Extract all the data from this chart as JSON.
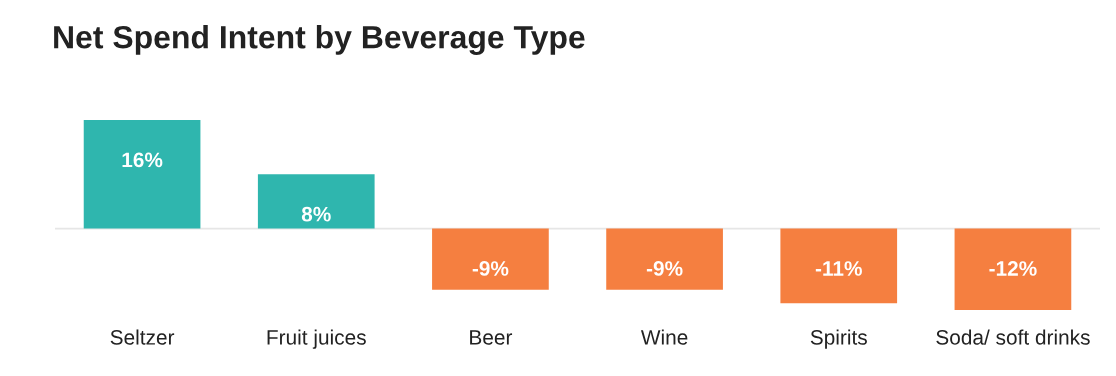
{
  "chart_data": {
    "type": "bar",
    "title": "Net Spend Intent by Beverage Type",
    "categories": [
      "Seltzer",
      "Fruit juices",
      "Beer",
      "Wine",
      "Spirits",
      "Soda/ soft drinks"
    ],
    "values": [
      16,
      8,
      -9,
      -9,
      -11,
      -12
    ],
    "colors": [
      "#2fb6ae",
      "#2fb6ae",
      "#f57f40",
      "#f57f40",
      "#f57f40",
      "#f57f40"
    ],
    "value_labels": [
      "16%",
      "8%",
      "-9%",
      "-9%",
      "-11%",
      "-12%"
    ],
    "grid": false,
    "legend": false
  }
}
